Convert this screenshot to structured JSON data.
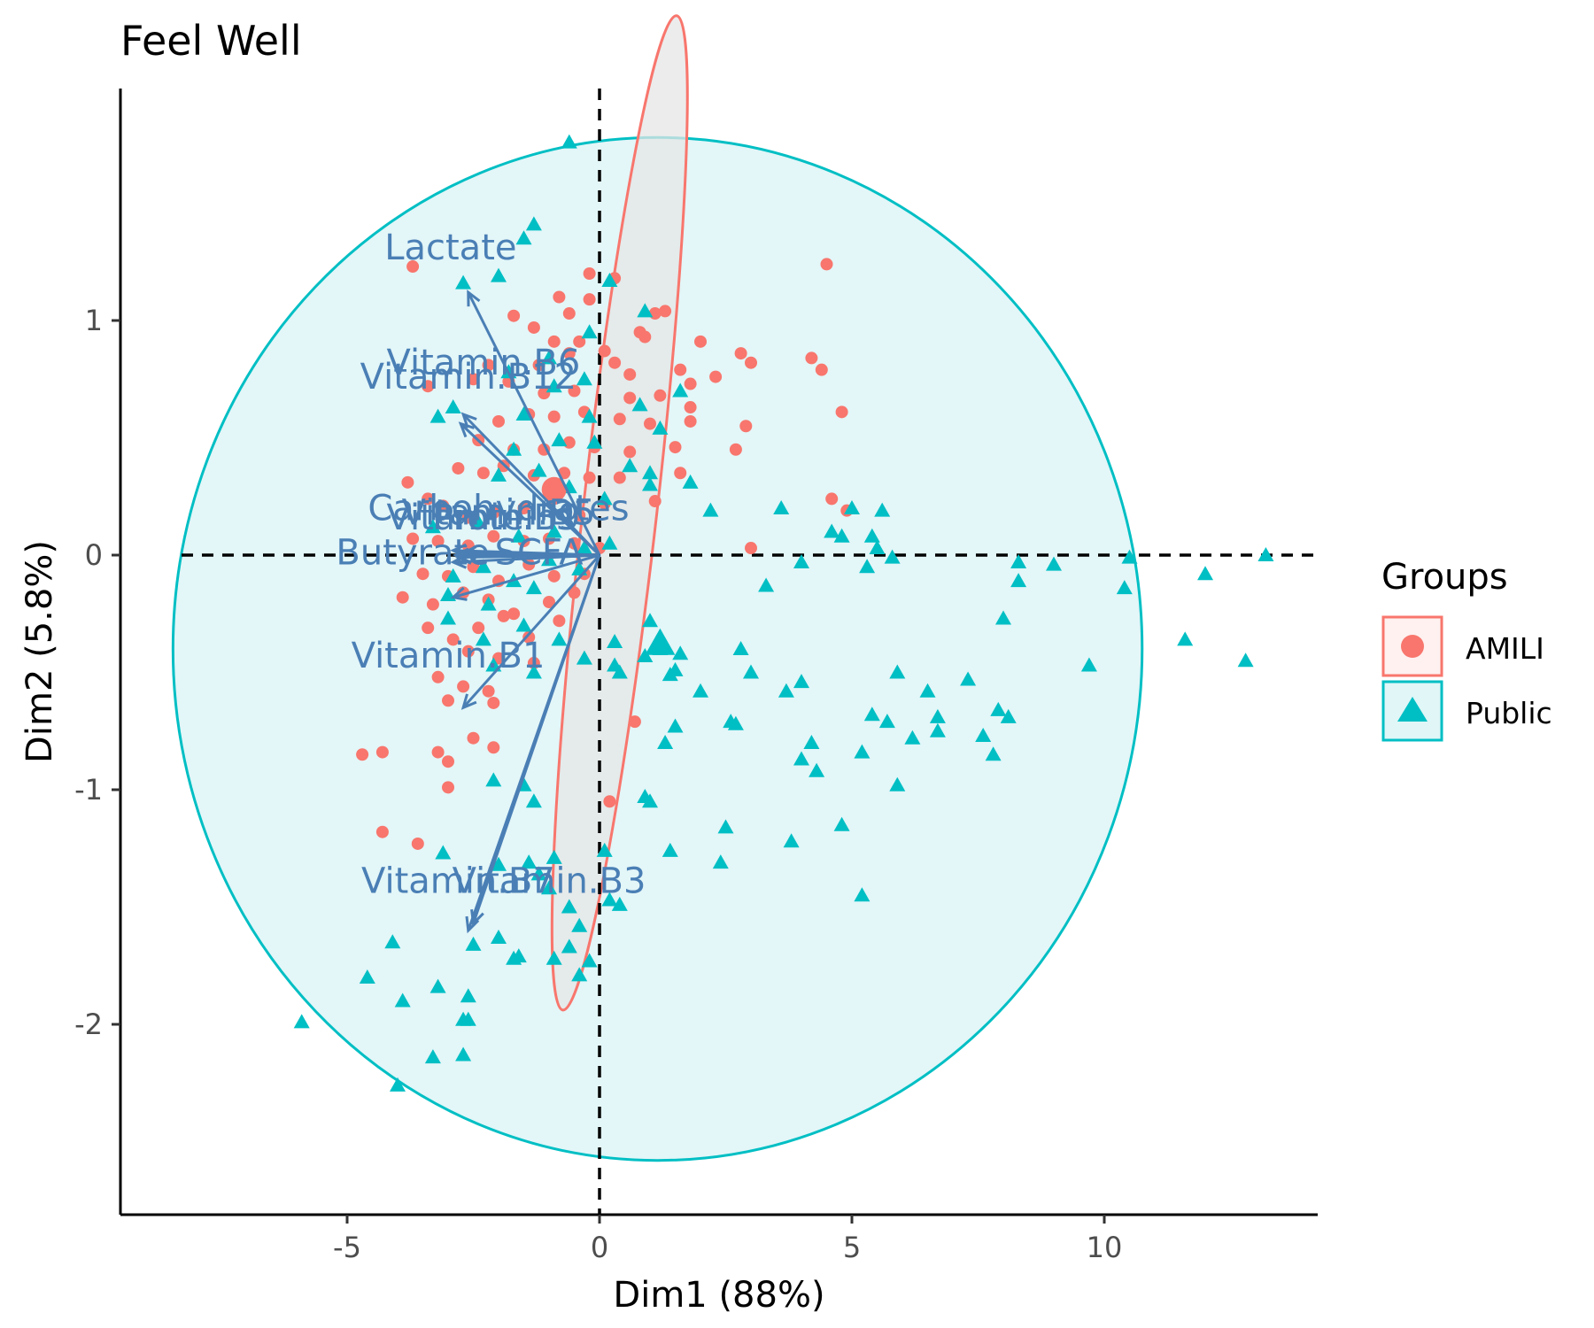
{
  "chart_data": {
    "type": "scatter",
    "title": "Feel Well",
    "xlabel": "Dim1 (88%)",
    "ylabel": "Dim2 (5.8%)",
    "xlim": [
      -9.5,
      14.2
    ],
    "ylim": [
      -2.85,
      2.0
    ],
    "x_ticks": [
      -5,
      0,
      5,
      10
    ],
    "y_ticks": [
      1,
      0,
      -1,
      -2
    ],
    "x_tick_labels": [
      "-5",
      "0",
      "5",
      "10"
    ],
    "y_tick_labels": [
      "1",
      "0",
      "-1",
      "-2"
    ],
    "grid": false,
    "reference_lines": {
      "x": 0,
      "y": 0,
      "style": "dashed"
    },
    "legend": {
      "title": "Groups",
      "position": "right",
      "entries": [
        {
          "label": "AMILI",
          "marker": "circle",
          "color": "#F8766D"
        },
        {
          "label": "Public",
          "marker": "triangle",
          "color": "#00BFC4"
        }
      ]
    },
    "colors": {
      "amili": "#F8766D",
      "public": "#00BFC4",
      "vector": "#4A7FB5",
      "amili_fill": "#E5E5E5",
      "public_fill": "#DEF5F7"
    },
    "ellipses": [
      {
        "group": "AMILI",
        "center": [
          0.4,
          0.18
        ],
        "semi_major": 2.4,
        "semi_minor": 0.65,
        "angle_deg": 62
      },
      {
        "group": "Public",
        "center": [
          1.15,
          -0.4
        ],
        "semi_major": 9.6,
        "semi_minor": 2.18,
        "angle_deg": 0
      }
    ],
    "vectors": [
      {
        "label": "Lactate",
        "x": -2.6,
        "y": 1.12,
        "label_x": -2.95,
        "label_y": 1.26
      },
      {
        "label": "Vitamin.B6",
        "x": -2.7,
        "y": 0.6,
        "label_x": -2.3,
        "label_y": 0.77
      },
      {
        "label": "Vitamin.B12",
        "x": -2.75,
        "y": 0.56,
        "label_x": -2.6,
        "label_y": 0.71
      },
      {
        "label": "Carbohydrates",
        "x": -2.9,
        "y": 0.02,
        "label_x": -2.0,
        "label_y": 0.15
      },
      {
        "label": "Vitamin.B5",
        "x": -2.85,
        "y": 0.0,
        "label_x": -2.0,
        "label_y": 0.13
      },
      {
        "label": "Proteins",
        "x": -2.7,
        "y": 0.01,
        "label_x": -1.9,
        "label_y": 0.11
      },
      {
        "label": "Vitamin.B9",
        "x": -2.8,
        "y": -0.01,
        "label_x": -2.3,
        "label_y": 0.11
      },
      {
        "label": "Butyrate",
        "x": -2.9,
        "y": -0.03,
        "label_x": -3.7,
        "label_y": -0.04
      },
      {
        "label": "SCFA",
        "x": -2.9,
        "y": -0.18,
        "label_x": -1.2,
        "label_y": -0.04
      },
      {
        "label": "Vitamin.B1",
        "x": -2.7,
        "y": -0.65,
        "label_x": -3.0,
        "label_y": -0.48
      },
      {
        "label": "Vitamin.B7",
        "x": -2.6,
        "y": -1.6,
        "label_x": -2.8,
        "label_y": -1.44
      },
      {
        "label": "Vitamin.B3",
        "x": -2.5,
        "y": -1.57,
        "label_x": -1.0,
        "label_y": -1.44
      }
    ],
    "series": [
      {
        "name": "AMILI",
        "marker": "circle",
        "points": [
          [
            -3.7,
            1.23
          ],
          [
            -0.2,
            1.2
          ],
          [
            0.3,
            1.18
          ],
          [
            -0.8,
            1.1
          ],
          [
            -1.7,
            1.02
          ],
          [
            -0.6,
            1.03
          ],
          [
            -0.2,
            1.09
          ],
          [
            1.1,
            1.03
          ],
          [
            1.3,
            1.04
          ],
          [
            -1.3,
            0.97
          ],
          [
            -0.9,
            0.91
          ],
          [
            -0.4,
            0.91
          ],
          [
            0.8,
            0.95
          ],
          [
            0.1,
            0.87
          ],
          [
            0.9,
            0.93
          ],
          [
            2.0,
            0.91
          ],
          [
            2.8,
            0.86
          ],
          [
            3.0,
            0.82
          ],
          [
            -2.2,
            0.81
          ],
          [
            -1.2,
            0.81
          ],
          [
            -0.6,
            0.86
          ],
          [
            0.3,
            0.82
          ],
          [
            0.6,
            0.77
          ],
          [
            1.6,
            0.79
          ],
          [
            1.8,
            0.73
          ],
          [
            2.3,
            0.76
          ],
          [
            -3.4,
            0.72
          ],
          [
            -2.5,
            0.75
          ],
          [
            -1.8,
            0.74
          ],
          [
            -1.1,
            0.69
          ],
          [
            -0.5,
            0.7
          ],
          [
            0.6,
            0.67
          ],
          [
            1.2,
            0.68
          ],
          [
            1.8,
            0.63
          ],
          [
            -2.0,
            0.57
          ],
          [
            -1.4,
            0.6
          ],
          [
            -0.9,
            0.59
          ],
          [
            -0.3,
            0.61
          ],
          [
            0.4,
            0.58
          ],
          [
            1.0,
            0.56
          ],
          [
            1.8,
            0.57
          ],
          [
            2.9,
            0.55
          ],
          [
            -2.4,
            0.49
          ],
          [
            -1.7,
            0.45
          ],
          [
            -1.1,
            0.45
          ],
          [
            -0.6,
            0.48
          ],
          [
            -0.1,
            0.46
          ],
          [
            0.6,
            0.44
          ],
          [
            1.5,
            0.46
          ],
          [
            2.7,
            0.45
          ],
          [
            -3.8,
            0.31
          ],
          [
            -3.4,
            0.24
          ],
          [
            -2.8,
            0.37
          ],
          [
            -2.3,
            0.35
          ],
          [
            -1.9,
            0.38
          ],
          [
            -1.3,
            0.34
          ],
          [
            -0.7,
            0.35
          ],
          [
            -0.2,
            0.33
          ],
          [
            0.4,
            0.33
          ],
          [
            1.6,
            0.35
          ],
          [
            -3.1,
            0.21
          ],
          [
            -2.6,
            0.16
          ],
          [
            -2.1,
            0.18
          ],
          [
            -1.5,
            0.2
          ],
          [
            -0.9,
            0.24
          ],
          [
            -0.4,
            0.17
          ],
          [
            0.1,
            0.22
          ],
          [
            1.1,
            0.23
          ],
          [
            -3.7,
            0.07
          ],
          [
            -3.2,
            0.06
          ],
          [
            -2.6,
            0.04
          ],
          [
            -2.1,
            0.08
          ],
          [
            -1.5,
            0.06
          ],
          [
            -1.0,
            0.07
          ],
          [
            -0.5,
            0.05
          ],
          [
            0.0,
            0.03
          ],
          [
            -3.5,
            -0.08
          ],
          [
            -3.0,
            -0.09
          ],
          [
            -2.5,
            -0.05
          ],
          [
            -2.0,
            -0.11
          ],
          [
            -1.4,
            -0.04
          ],
          [
            -0.9,
            -0.09
          ],
          [
            -0.3,
            -0.08
          ],
          [
            -3.9,
            -0.18
          ],
          [
            -3.3,
            -0.21
          ],
          [
            -2.7,
            -0.16
          ],
          [
            -2.2,
            -0.19
          ],
          [
            -1.7,
            -0.25
          ],
          [
            -1.0,
            -0.2
          ],
          [
            -0.5,
            -0.16
          ],
          [
            -3.4,
            -0.31
          ],
          [
            -2.9,
            -0.36
          ],
          [
            -2.4,
            -0.31
          ],
          [
            -1.9,
            -0.26
          ],
          [
            -1.4,
            -0.35
          ],
          [
            -0.8,
            -0.28
          ],
          [
            -2.6,
            -0.41
          ],
          [
            -2.0,
            -0.44
          ],
          [
            -1.3,
            -0.46
          ],
          [
            -3.2,
            -0.52
          ],
          [
            -2.7,
            -0.56
          ],
          [
            -2.2,
            -0.58
          ],
          [
            -3.0,
            -0.62
          ],
          [
            -2.1,
            -0.63
          ],
          [
            -2.5,
            -0.78
          ],
          [
            -2.1,
            -0.82
          ],
          [
            -3.2,
            -0.84
          ],
          [
            -3.0,
            -0.88
          ],
          [
            -4.7,
            -0.85
          ],
          [
            -4.3,
            -0.84
          ],
          [
            -4.3,
            -1.18
          ],
          [
            -3.6,
            -1.23
          ],
          [
            -3.0,
            -0.99
          ],
          [
            0.2,
            -1.05
          ],
          [
            0.7,
            -0.71
          ],
          [
            3.0,
            0.03
          ],
          [
            4.6,
            0.24
          ],
          [
            4.9,
            0.19
          ],
          [
            4.2,
            0.84
          ],
          [
            4.4,
            0.79
          ],
          [
            4.8,
            0.61
          ],
          [
            4.5,
            1.24
          ]
        ]
      },
      {
        "name": "Public",
        "marker": "triangle",
        "points": [
          [
            -0.6,
            1.76
          ],
          [
            -1.3,
            1.41
          ],
          [
            -1.5,
            1.35
          ],
          [
            -2.7,
            1.16
          ],
          [
            -2.0,
            1.19
          ],
          [
            0.2,
            1.17
          ],
          [
            0.9,
            1.04
          ],
          [
            -1.0,
            0.84
          ],
          [
            -0.2,
            0.95
          ],
          [
            -1.8,
            0.78
          ],
          [
            -0.9,
            0.72
          ],
          [
            -0.3,
            0.75
          ],
          [
            1.6,
            0.7
          ],
          [
            -3.2,
            0.59
          ],
          [
            -2.9,
            0.63
          ],
          [
            -1.5,
            0.6
          ],
          [
            -0.2,
            0.59
          ],
          [
            0.8,
            0.64
          ],
          [
            1.2,
            0.54
          ],
          [
            -1.7,
            0.45
          ],
          [
            -0.8,
            0.49
          ],
          [
            -0.1,
            0.48
          ],
          [
            0.6,
            0.38
          ],
          [
            1.0,
            0.35
          ],
          [
            1.8,
            0.31
          ],
          [
            -2.0,
            0.34
          ],
          [
            -1.2,
            0.36
          ],
          [
            -0.6,
            0.29
          ],
          [
            0.1,
            0.24
          ],
          [
            1.0,
            0.3
          ],
          [
            2.2,
            0.19
          ],
          [
            3.6,
            0.2
          ],
          [
            4.6,
            0.1
          ],
          [
            5.0,
            0.2
          ],
          [
            5.6,
            0.19
          ],
          [
            5.4,
            0.08
          ],
          [
            -3.3,
            0.12
          ],
          [
            -2.4,
            0.14
          ],
          [
            -1.6,
            0.08
          ],
          [
            -0.9,
            0.1
          ],
          [
            -0.3,
            0.03
          ],
          [
            0.2,
            0.05
          ],
          [
            4.8,
            0.08
          ],
          [
            5.5,
            0.03
          ],
          [
            5.8,
            -0.01
          ],
          [
            5.3,
            -0.05
          ],
          [
            4.0,
            -0.03
          ],
          [
            -2.9,
            -0.09
          ],
          [
            -2.3,
            -0.05
          ],
          [
            -1.7,
            -0.11
          ],
          [
            -1.0,
            -0.02
          ],
          [
            -0.4,
            -0.06
          ],
          [
            3.3,
            -0.13
          ],
          [
            -3.0,
            -0.17
          ],
          [
            -2.2,
            -0.21
          ],
          [
            -1.3,
            -0.14
          ],
          [
            -3.0,
            -0.27
          ],
          [
            -2.3,
            -0.36
          ],
          [
            -1.5,
            -0.3
          ],
          [
            -0.8,
            -0.36
          ],
          [
            1.0,
            -0.28
          ],
          [
            0.3,
            -0.37
          ],
          [
            1.2,
            -0.4
          ],
          [
            1.6,
            -0.42
          ],
          [
            0.3,
            -0.47
          ],
          [
            1.5,
            -0.49
          ],
          [
            0.9,
            -0.43
          ],
          [
            -2.1,
            -0.47
          ],
          [
            -1.3,
            -0.5
          ],
          [
            -0.3,
            -0.44
          ],
          [
            0.4,
            -0.5
          ],
          [
            1.4,
            -0.51
          ],
          [
            2.0,
            -0.58
          ],
          [
            2.8,
            -0.4
          ],
          [
            3.0,
            -0.5
          ],
          [
            3.7,
            -0.58
          ],
          [
            4.0,
            -0.54
          ],
          [
            5.9,
            -0.5
          ],
          [
            6.5,
            -0.58
          ],
          [
            6.7,
            -0.69
          ],
          [
            7.3,
            -0.53
          ],
          [
            7.9,
            -0.66
          ],
          [
            8.1,
            -0.69
          ],
          [
            5.7,
            -0.71
          ],
          [
            6.2,
            -0.78
          ],
          [
            6.7,
            -0.75
          ],
          [
            7.6,
            -0.77
          ],
          [
            7.8,
            -0.85
          ],
          [
            5.4,
            -0.68
          ],
          [
            4.2,
            -0.8
          ],
          [
            4.0,
            -0.87
          ],
          [
            4.3,
            -0.92
          ],
          [
            5.2,
            -0.84
          ],
          [
            5.9,
            -0.98
          ],
          [
            2.6,
            -0.71
          ],
          [
            2.7,
            -0.72
          ],
          [
            1.5,
            -0.73
          ],
          [
            1.3,
            -0.8
          ],
          [
            -2.1,
            -0.96
          ],
          [
            -1.3,
            -1.05
          ],
          [
            -1.5,
            -0.98
          ],
          [
            0.9,
            -1.03
          ],
          [
            1.0,
            -1.05
          ],
          [
            1.4,
            -1.26
          ],
          [
            -2.0,
            -1.32
          ],
          [
            -1.2,
            -1.36
          ],
          [
            -1.4,
            -1.31
          ],
          [
            -1.0,
            -1.42
          ],
          [
            -0.9,
            -1.29
          ],
          [
            0.1,
            -1.26
          ],
          [
            2.5,
            -1.16
          ],
          [
            2.4,
            -1.31
          ],
          [
            3.8,
            -1.22
          ],
          [
            4.8,
            -1.15
          ],
          [
            5.2,
            -1.45
          ],
          [
            0.4,
            -1.49
          ],
          [
            0.2,
            -1.47
          ],
          [
            -0.6,
            -1.5
          ],
          [
            -0.4,
            -1.58
          ],
          [
            -0.6,
            -1.67
          ],
          [
            -0.2,
            -1.73
          ],
          [
            -0.9,
            -1.72
          ],
          [
            -1.7,
            -1.72
          ],
          [
            -1.6,
            -1.71
          ],
          [
            -2.0,
            -1.63
          ],
          [
            -2.5,
            -1.66
          ],
          [
            -3.1,
            -1.27
          ],
          [
            -3.2,
            -1.84
          ],
          [
            -2.6,
            -1.88
          ],
          [
            -2.6,
            -1.98
          ],
          [
            -2.7,
            -1.98
          ],
          [
            -2.7,
            -2.13
          ],
          [
            -3.3,
            -2.14
          ],
          [
            -3.9,
            -1.9
          ],
          [
            -4.6,
            -1.8
          ],
          [
            -4.1,
            -1.65
          ],
          [
            -4.0,
            -2.26
          ],
          [
            -5.9,
            -1.99
          ],
          [
            -0.4,
            -1.79
          ],
          [
            8.3,
            -0.03
          ],
          [
            8.3,
            -0.11
          ],
          [
            9.0,
            -0.04
          ],
          [
            8.0,
            -0.27
          ],
          [
            9.7,
            -0.47
          ],
          [
            10.4,
            -0.14
          ],
          [
            10.5,
            -0.01
          ],
          [
            11.6,
            -0.36
          ],
          [
            12.0,
            -0.08
          ],
          [
            12.8,
            -0.45
          ],
          [
            13.2,
            0.0
          ]
        ]
      }
    ]
  }
}
